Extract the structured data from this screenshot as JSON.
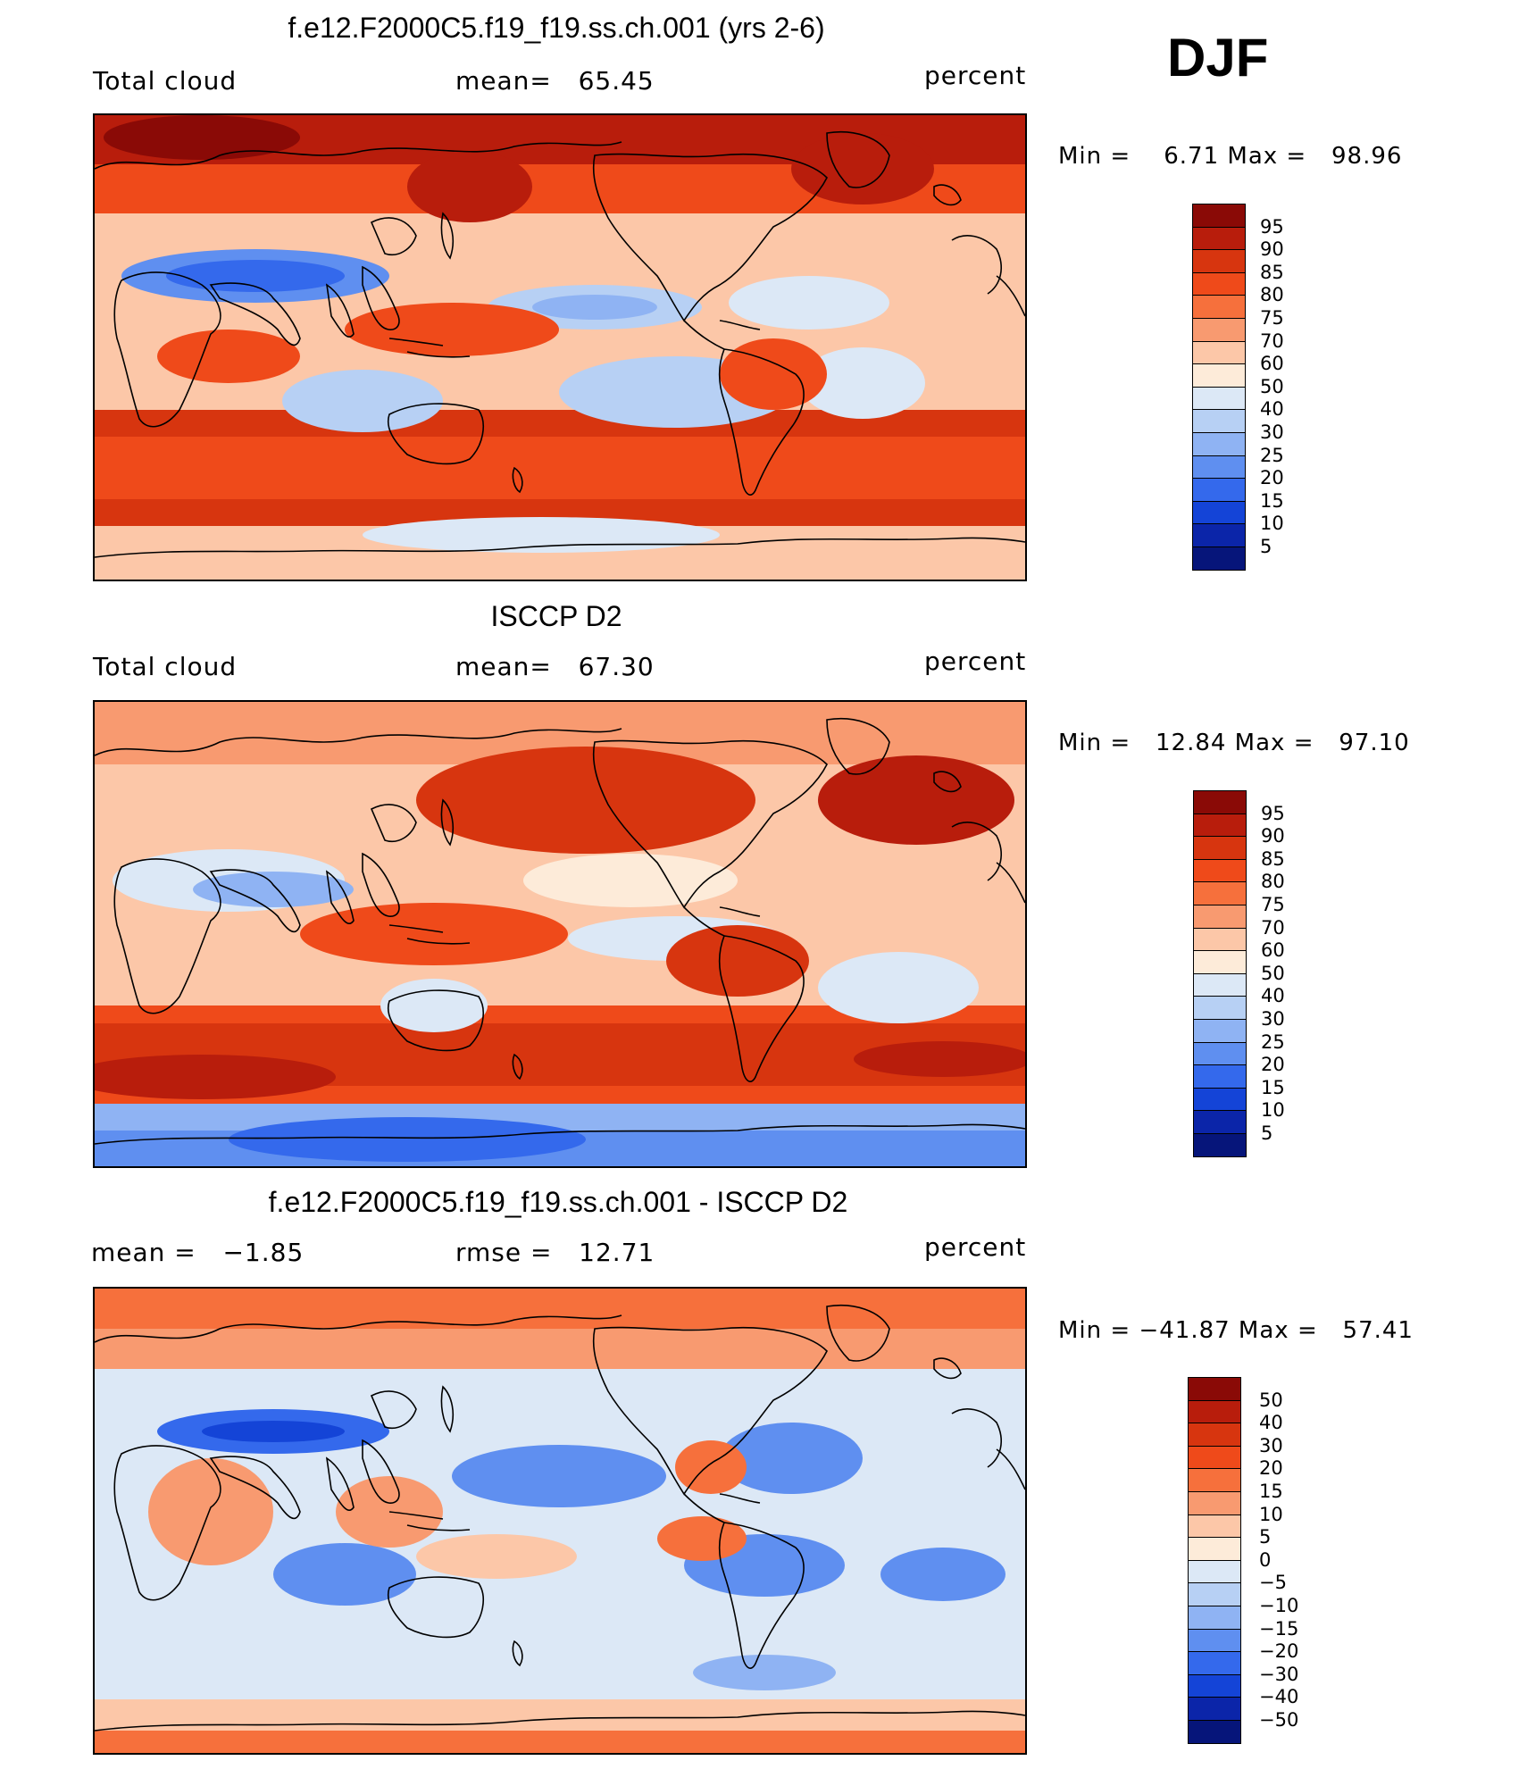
{
  "season": "DJF",
  "panels": [
    {
      "title": "f.e12.F2000C5.f19_f19.ss.ch.001 (yrs 2-6)",
      "left": "Total cloud",
      "center": "mean=   65.45",
      "right": "percent",
      "minmax": "Min =    6.71 Max =   98.96",
      "kind": "model"
    },
    {
      "title": "ISCCP D2",
      "left": "Total cloud",
      "center": "mean=   67.30",
      "right": "percent",
      "minmax": "Min =   12.84 Max =   97.10",
      "kind": "obs"
    },
    {
      "title": "f.e12.F2000C5.f19_f19.ss.ch.001 - ISCCP D2",
      "left": "mean =   −1.85",
      "center": "rmse =   12.71",
      "right": "percent",
      "minmax": "Min = −41.87 Max =   57.41",
      "kind": "diff"
    }
  ],
  "colorbars": {
    "abs": {
      "labels": [
        "95",
        "90",
        "85",
        "80",
        "75",
        "70",
        "60",
        "50",
        "40",
        "30",
        "25",
        "20",
        "15",
        "10",
        "5"
      ],
      "colors": [
        "#8a0a06",
        "#b81d0c",
        "#d7350f",
        "#ef4a1a",
        "#f6703c",
        "#f89a70",
        "#fcc7a8",
        "#fdebd9",
        "#dce8f6",
        "#b7d0f4",
        "#8fb3f3",
        "#5f8ff0",
        "#3469ec",
        "#1444d7",
        "#0b25a9",
        "#06157a"
      ]
    },
    "diff": {
      "labels": [
        "50",
        "40",
        "30",
        "20",
        "15",
        "10",
        "5",
        "0",
        "−5",
        "−10",
        "−15",
        "−20",
        "−30",
        "−40",
        "−50"
      ],
      "colors": [
        "#8a0a06",
        "#b81d0c",
        "#d7350f",
        "#ef4a1a",
        "#f6703c",
        "#f89a70",
        "#fcc7a8",
        "#fdebd9",
        "#dce8f6",
        "#b7d0f4",
        "#8fb3f3",
        "#5f8ff0",
        "#3469ec",
        "#1444d7",
        "#0b25a9",
        "#06157a"
      ]
    }
  }
}
